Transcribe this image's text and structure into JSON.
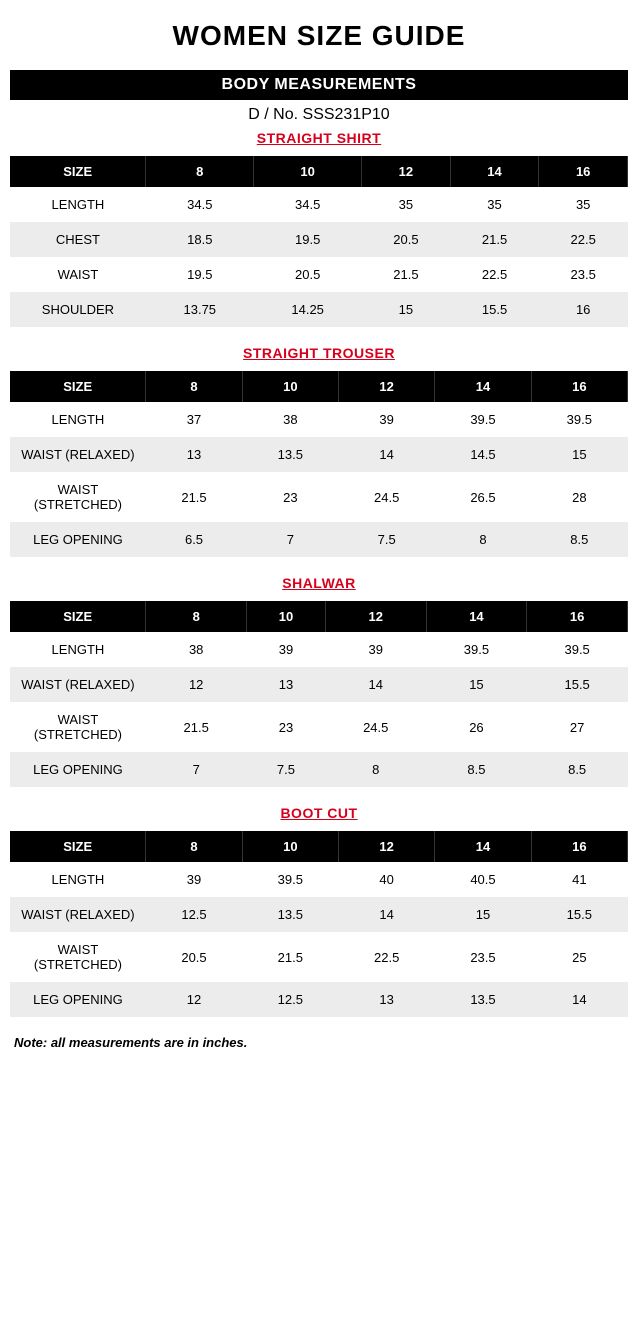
{
  "page_title": "WOMEN SIZE GUIDE",
  "section_banner": "BODY MEASUREMENTS",
  "design_no": "D / No. SSS231P10",
  "footnote": "Note: all measurements are in inches.",
  "size_header_label": "SIZE",
  "sizes": [
    "8",
    "10",
    "12",
    "14",
    "16"
  ],
  "tables": [
    {
      "title": "STRAIGHT SHIRT",
      "tall": true,
      "rows": [
        {
          "label": "LENGTH",
          "alt": false,
          "values": [
            "34.5",
            "34.5",
            "35",
            "35",
            "35"
          ]
        },
        {
          "label": "CHEST",
          "alt": true,
          "values": [
            "18.5",
            "19.5",
            "20.5",
            "21.5",
            "22.5"
          ]
        },
        {
          "label": "WAIST",
          "alt": false,
          "values": [
            "19.5",
            "20.5",
            "21.5",
            "22.5",
            "23.5"
          ]
        },
        {
          "label": "SHOULDER",
          "alt": true,
          "values": [
            "13.75",
            "14.25",
            "15",
            "15.5",
            "16"
          ]
        }
      ]
    },
    {
      "title": "STRAIGHT TROUSER",
      "tall": false,
      "rows": [
        {
          "label": "LENGTH",
          "alt": false,
          "values": [
            "37",
            "38",
            "39",
            "39.5",
            "39.5"
          ]
        },
        {
          "label": "WAIST (RELAXED)",
          "alt": true,
          "values": [
            "13",
            "13.5",
            "14",
            "14.5",
            "15"
          ]
        },
        {
          "label": "WAIST (STRETCHED)",
          "alt": false,
          "values": [
            "21.5",
            "23",
            "24.5",
            "26.5",
            "28"
          ]
        },
        {
          "label": "LEG OPENING",
          "alt": true,
          "values": [
            "6.5",
            "7",
            "7.5",
            "8",
            "8.5"
          ]
        }
      ]
    },
    {
      "title": "SHALWAR",
      "tall": false,
      "rows": [
        {
          "label": "LENGTH",
          "alt": false,
          "values": [
            "38",
            "39",
            "39",
            "39.5",
            "39.5"
          ]
        },
        {
          "label": "WAIST (RELAXED)",
          "alt": true,
          "values": [
            "12",
            "13",
            "14",
            "15",
            "15.5"
          ]
        },
        {
          "label": "WAIST (STRETCHED)",
          "alt": false,
          "values": [
            "21.5",
            "23",
            "24.5",
            "26",
            "27"
          ]
        },
        {
          "label": "LEG OPENING",
          "alt": true,
          "values": [
            "7",
            "7.5",
            "8",
            "8.5",
            "8.5"
          ]
        }
      ]
    },
    {
      "title": "BOOT CUT",
      "tall": false,
      "rows": [
        {
          "label": "LENGTH",
          "alt": false,
          "values": [
            "39",
            "39.5",
            "40",
            "40.5",
            "41"
          ]
        },
        {
          "label": "WAIST (RELAXED)",
          "alt": true,
          "values": [
            "12.5",
            "13.5",
            "14",
            "15",
            "15.5"
          ]
        },
        {
          "label": "WAIST (STRETCHED)",
          "alt": false,
          "values": [
            "20.5",
            "21.5",
            "22.5",
            "23.5",
            "25"
          ]
        },
        {
          "label": "LEG OPENING",
          "alt": true,
          "values": [
            "12",
            "12.5",
            "13",
            "13.5",
            "14"
          ]
        }
      ]
    }
  ]
}
